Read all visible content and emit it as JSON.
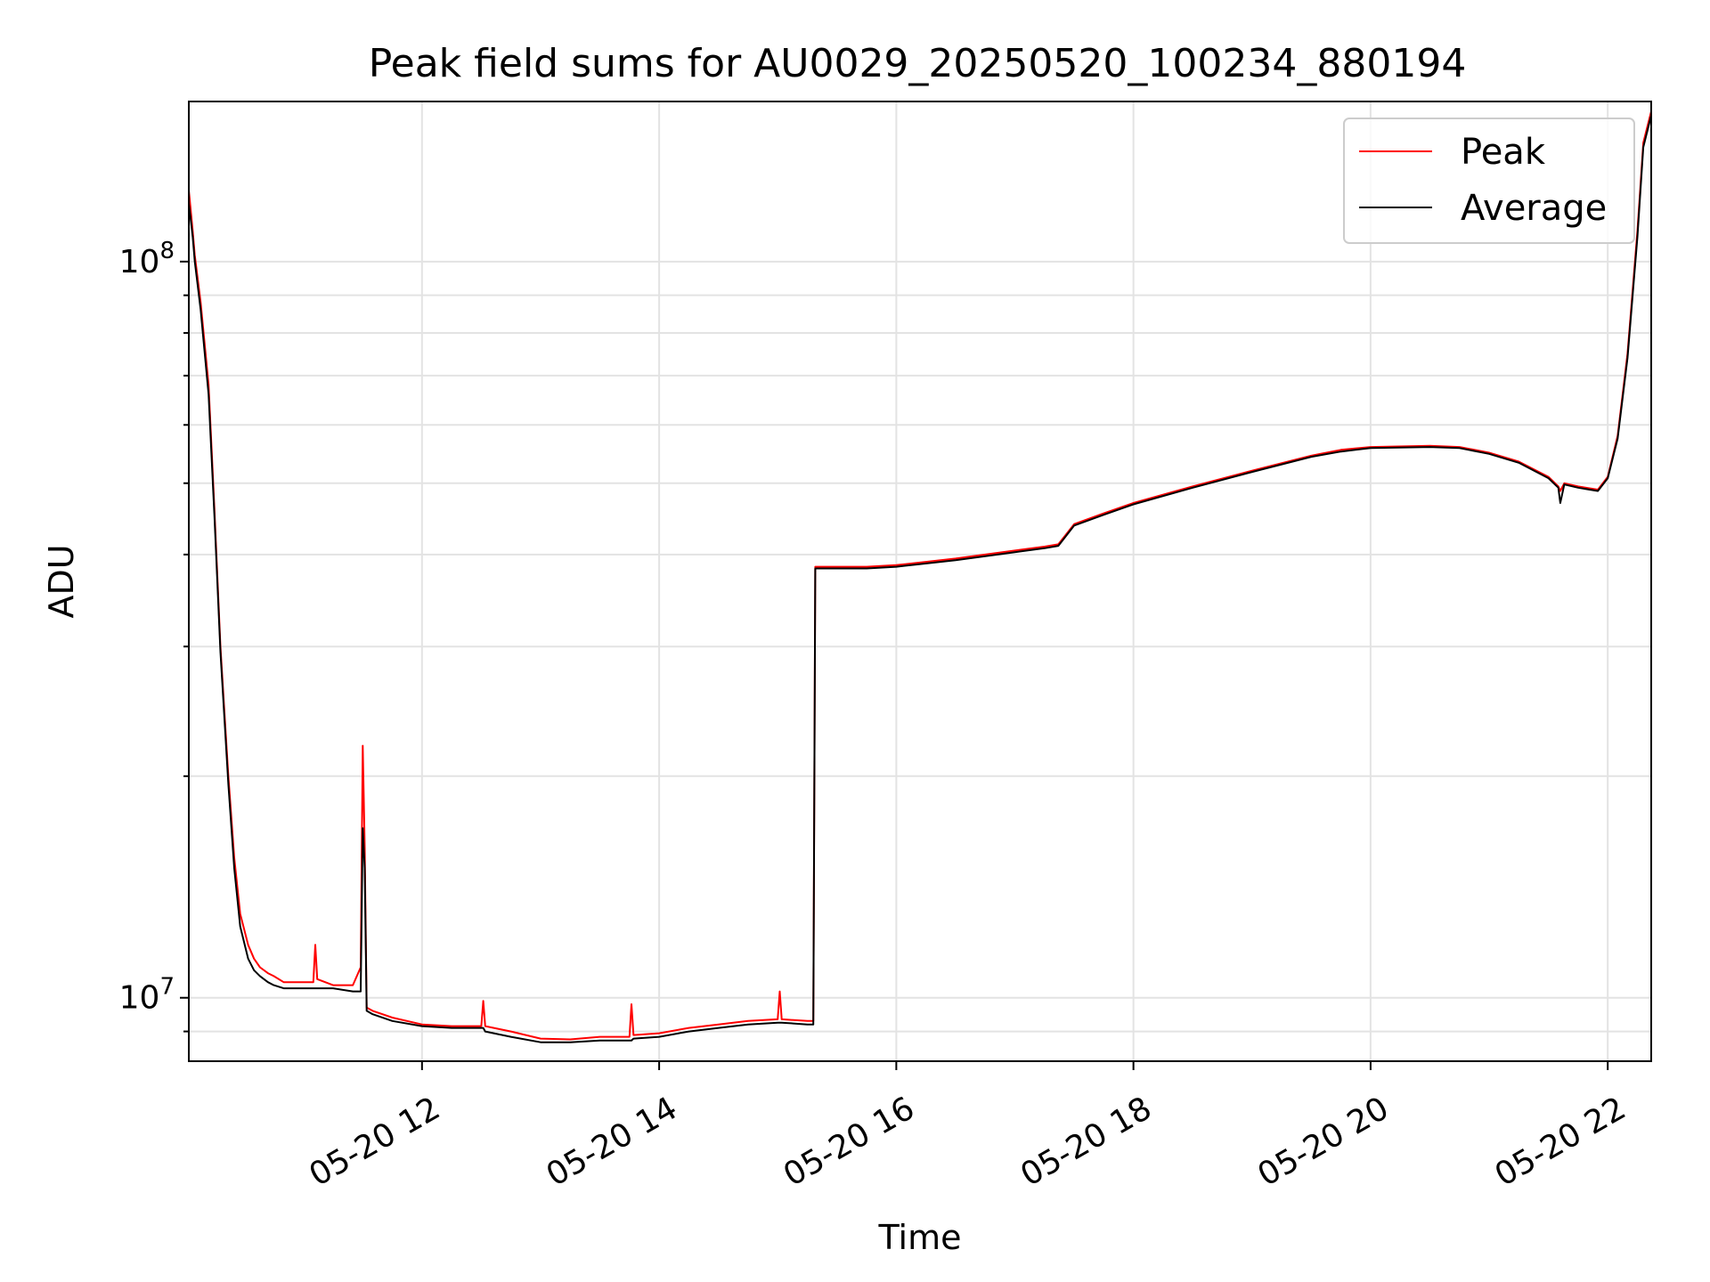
{
  "chart_data": {
    "type": "line",
    "title": "Peak field sums for AU0029_20250520_100234_880194",
    "xlabel": "Time",
    "ylabel": "ADU",
    "yscale": "log",
    "ylim": [
      8200000,
      165000000
    ],
    "xlim": [
      "2025-05-20 10:02",
      "2025-05-20 22:22"
    ],
    "grid": true,
    "legend_position": "top-right",
    "x_ticks": [
      {
        "label": "05-20 12",
        "value": "2025-05-20 12:00"
      },
      {
        "label": "05-20 14",
        "value": "2025-05-20 14:00"
      },
      {
        "label": "05-20 16",
        "value": "2025-05-20 16:00"
      },
      {
        "label": "05-20 18",
        "value": "2025-05-20 18:00"
      },
      {
        "label": "05-20 20",
        "value": "2025-05-20 20:00"
      },
      {
        "label": "05-20 22",
        "value": "2025-05-20 22:00"
      }
    ],
    "y_ticks": [
      {
        "base": "10",
        "exp": "7",
        "value": 10000000
      },
      {
        "base": "10",
        "exp": "8",
        "value": 100000000
      }
    ],
    "series": [
      {
        "name": "Peak",
        "color": "#ff0000",
        "x": [
          "2025-05-20 10:02",
          "2025-05-20 10:04",
          "2025-05-20 10:05",
          "2025-05-20 10:08",
          "2025-05-20 10:12",
          "2025-05-20 10:15",
          "2025-05-20 10:18",
          "2025-05-20 10:22",
          "2025-05-20 10:25",
          "2025-05-20 10:28",
          "2025-05-20 10:32",
          "2025-05-20 10:35",
          "2025-05-20 10:38",
          "2025-05-20 10:42",
          "2025-05-20 10:45",
          "2025-05-20 10:50",
          "2025-05-20 11:00",
          "2025-05-20 11:05",
          "2025-05-20 11:06",
          "2025-05-20 11:07",
          "2025-05-20 11:15",
          "2025-05-20 11:25",
          "2025-05-20 11:29",
          "2025-05-20 11:30",
          "2025-05-20 11:31",
          "2025-05-20 11:32",
          "2025-05-20 11:35",
          "2025-05-20 11:45",
          "2025-05-20 12:00",
          "2025-05-20 12:15",
          "2025-05-20 12:30",
          "2025-05-20 12:31",
          "2025-05-20 12:32",
          "2025-05-20 12:45",
          "2025-05-20 13:00",
          "2025-05-20 13:15",
          "2025-05-20 13:30",
          "2025-05-20 13:45",
          "2025-05-20 13:46",
          "2025-05-20 13:47",
          "2025-05-20 14:00",
          "2025-05-20 14:15",
          "2025-05-20 14:30",
          "2025-05-20 14:45",
          "2025-05-20 15:00",
          "2025-05-20 15:01",
          "2025-05-20 15:02",
          "2025-05-20 15:15",
          "2025-05-20 15:18",
          "2025-05-20 15:19",
          "2025-05-20 15:30",
          "2025-05-20 15:45",
          "2025-05-20 16:00",
          "2025-05-20 16:30",
          "2025-05-20 17:00",
          "2025-05-20 17:15",
          "2025-05-20 17:22",
          "2025-05-20 17:30",
          "2025-05-20 17:45",
          "2025-05-20 18:00",
          "2025-05-20 18:30",
          "2025-05-20 19:00",
          "2025-05-20 19:30",
          "2025-05-20 19:45",
          "2025-05-20 20:00",
          "2025-05-20 20:30",
          "2025-05-20 20:45",
          "2025-05-20 21:00",
          "2025-05-20 21:15",
          "2025-05-20 21:30",
          "2025-05-20 21:35",
          "2025-05-20 21:36",
          "2025-05-20 21:38",
          "2025-05-20 21:45",
          "2025-05-20 21:55",
          "2025-05-20 22:00",
          "2025-05-20 22:05",
          "2025-05-20 22:10",
          "2025-05-20 22:15",
          "2025-05-20 22:18",
          "2025-05-20 22:22"
        ],
        "y": [
          125000000,
          110000000,
          102000000,
          88000000,
          68000000,
          46000000,
          30000000,
          20000000,
          15500000,
          13000000,
          11800000,
          11300000,
          11000000,
          10800000,
          10700000,
          10500000,
          10500000,
          10500000,
          11800000,
          10600000,
          10400000,
          10400000,
          11000000,
          22000000,
          16000000,
          9700000,
          9600000,
          9400000,
          9200000,
          9150000,
          9150000,
          9900000,
          9150000,
          9000000,
          8800000,
          8780000,
          8850000,
          8850000,
          9800000,
          8900000,
          8950000,
          9100000,
          9200000,
          9300000,
          9350000,
          10200000,
          9350000,
          9300000,
          9300000,
          38500000,
          38500000,
          38500000,
          38700000,
          39500000,
          40500000,
          41000000,
          41300000,
          44000000,
          45500000,
          47000000,
          49500000,
          52000000,
          54500000,
          55500000,
          56000000,
          56200000,
          56000000,
          55000000,
          53500000,
          51000000,
          49500000,
          48800000,
          50000000,
          49500000,
          49000000,
          51000000,
          58000000,
          75000000,
          110000000,
          145000000,
          160000000
        ]
      },
      {
        "name": "Average",
        "color": "#000000",
        "x": [
          "2025-05-20 10:02",
          "2025-05-20 10:04",
          "2025-05-20 10:05",
          "2025-05-20 10:08",
          "2025-05-20 10:12",
          "2025-05-20 10:15",
          "2025-05-20 10:18",
          "2025-05-20 10:22",
          "2025-05-20 10:25",
          "2025-05-20 10:28",
          "2025-05-20 10:32",
          "2025-05-20 10:35",
          "2025-05-20 10:38",
          "2025-05-20 10:42",
          "2025-05-20 10:45",
          "2025-05-20 10:50",
          "2025-05-20 11:00",
          "2025-05-20 11:05",
          "2025-05-20 11:06",
          "2025-05-20 11:07",
          "2025-05-20 11:15",
          "2025-05-20 11:25",
          "2025-05-20 11:29",
          "2025-05-20 11:30",
          "2025-05-20 11:31",
          "2025-05-20 11:32",
          "2025-05-20 11:35",
          "2025-05-20 11:45",
          "2025-05-20 12:00",
          "2025-05-20 12:15",
          "2025-05-20 12:30",
          "2025-05-20 12:31",
          "2025-05-20 12:32",
          "2025-05-20 12:45",
          "2025-05-20 13:00",
          "2025-05-20 13:15",
          "2025-05-20 13:30",
          "2025-05-20 13:45",
          "2025-05-20 13:46",
          "2025-05-20 13:47",
          "2025-05-20 14:00",
          "2025-05-20 14:15",
          "2025-05-20 14:30",
          "2025-05-20 14:45",
          "2025-05-20 15:00",
          "2025-05-20 15:01",
          "2025-05-20 15:02",
          "2025-05-20 15:15",
          "2025-05-20 15:18",
          "2025-05-20 15:19",
          "2025-05-20 15:30",
          "2025-05-20 15:45",
          "2025-05-20 16:00",
          "2025-05-20 16:30",
          "2025-05-20 17:00",
          "2025-05-20 17:15",
          "2025-05-20 17:22",
          "2025-05-20 17:30",
          "2025-05-20 17:45",
          "2025-05-20 18:00",
          "2025-05-20 18:30",
          "2025-05-20 19:00",
          "2025-05-20 19:30",
          "2025-05-20 19:45",
          "2025-05-20 20:00",
          "2025-05-20 20:30",
          "2025-05-20 20:45",
          "2025-05-20 21:00",
          "2025-05-20 21:15",
          "2025-05-20 21:30",
          "2025-05-20 21:35",
          "2025-05-20 21:36",
          "2025-05-20 21:38",
          "2025-05-20 21:45",
          "2025-05-20 21:55",
          "2025-05-20 22:00",
          "2025-05-20 22:05",
          "2025-05-20 22:10",
          "2025-05-20 22:15",
          "2025-05-20 22:18",
          "2025-05-20 22:22"
        ],
        "y": [
          120000000,
          108000000,
          100000000,
          86000000,
          66000000,
          45000000,
          29500000,
          19500000,
          15000000,
          12500000,
          11300000,
          10900000,
          10700000,
          10500000,
          10400000,
          10300000,
          10300000,
          10300000,
          10300000,
          10300000,
          10300000,
          10200000,
          10200000,
          17000000,
          15000000,
          9600000,
          9500000,
          9300000,
          9150000,
          9100000,
          9100000,
          9100000,
          9000000,
          8850000,
          8700000,
          8700000,
          8750000,
          8750000,
          8750000,
          8800000,
          8850000,
          9000000,
          9100000,
          9200000,
          9250000,
          9250000,
          9250000,
          9200000,
          9200000,
          38300000,
          38300000,
          38300000,
          38500000,
          39300000,
          40300000,
          40800000,
          41100000,
          43800000,
          45300000,
          46800000,
          49300000,
          51800000,
          54300000,
          55200000,
          55800000,
          56000000,
          55800000,
          54800000,
          53300000,
          50800000,
          49300000,
          47000000,
          49800000,
          49300000,
          48800000,
          50800000,
          57500000,
          74000000,
          108000000,
          143000000,
          158000000
        ]
      }
    ]
  }
}
